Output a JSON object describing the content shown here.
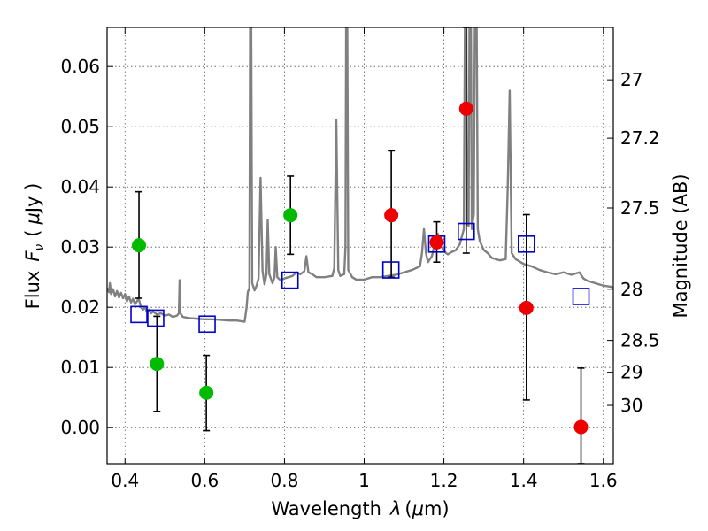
{
  "chart_data": {
    "type": "scatter",
    "title": "",
    "xlabel_text": "Wavelength",
    "xlabel_symbol": "λ",
    "xlabel_unit_open": "(",
    "xlabel_unit_mu": "μ",
    "xlabel_unit_rest": "m)",
    "ylabel_text": "Flux",
    "ylabel_symbol": "F",
    "ylabel_subscript": "ν",
    "ylabel_unit_open": "(",
    "ylabel_unit_mu": "μ",
    "ylabel_unit_rest": "Jy )",
    "y2label": "Magnitude (AB)",
    "xlim": [
      0.355,
      1.625
    ],
    "ylim": [
      -0.006,
      0.0665
    ],
    "grid": true,
    "xticks": [
      0.4,
      0.6,
      0.8,
      1.0,
      1.2,
      1.4,
      1.6
    ],
    "xtick_labels": [
      "0.4",
      "0.6",
      "0.8",
      "1",
      "1.2",
      "1.4",
      "1.6"
    ],
    "yticks": [
      0.0,
      0.01,
      0.02,
      0.03,
      0.04,
      0.05,
      0.06
    ],
    "ytick_labels": [
      "0.00",
      "0.01",
      "0.02",
      "0.03",
      "0.04",
      "0.05",
      "0.06"
    ],
    "y2ticks": [
      {
        "label": "27",
        "flux": 0.0578
      },
      {
        "label": "27.2",
        "flux": 0.0481
      },
      {
        "label": "27.5",
        "flux": 0.0365
      },
      {
        "label": "28",
        "flux": 0.023
      },
      {
        "label": "28.5",
        "flux": 0.0145
      },
      {
        "label": "29",
        "flux": 0.0092
      },
      {
        "label": "30",
        "flux": 0.0037
      }
    ],
    "colors": {
      "spectrum": "#808080",
      "detections_green": "#00bb00",
      "detections_red": "#ee0000",
      "model_boxes": "#0000cc",
      "errorbars": "#000000"
    },
    "series": [
      {
        "name": "Model spectrum",
        "kind": "line",
        "points": [
          [
            0.355,
            0.0232
          ],
          [
            0.36,
            0.0225
          ],
          [
            0.362,
            0.024
          ],
          [
            0.365,
            0.0222
          ],
          [
            0.37,
            0.023
          ],
          [
            0.375,
            0.0218
          ],
          [
            0.38,
            0.0227
          ],
          [
            0.385,
            0.0216
          ],
          [
            0.39,
            0.0224
          ],
          [
            0.395,
            0.0215
          ],
          [
            0.4,
            0.0222
          ],
          [
            0.405,
            0.021
          ],
          [
            0.41,
            0.0218
          ],
          [
            0.415,
            0.0208
          ],
          [
            0.42,
            0.0214
          ],
          [
            0.425,
            0.0205
          ],
          [
            0.43,
            0.021
          ],
          [
            0.434,
            0.0215
          ],
          [
            0.436,
            0.021
          ],
          [
            0.44,
            0.02
          ],
          [
            0.445,
            0.0196
          ],
          [
            0.45,
            0.02
          ],
          [
            0.455,
            0.0192
          ],
          [
            0.46,
            0.0196
          ],
          [
            0.465,
            0.019
          ],
          [
            0.47,
            0.0193
          ],
          [
            0.48,
            0.0188
          ],
          [
            0.49,
            0.019
          ],
          [
            0.5,
            0.0186
          ],
          [
            0.51,
            0.0188
          ],
          [
            0.52,
            0.0184
          ],
          [
            0.53,
            0.0186
          ],
          [
            0.535,
            0.019
          ],
          [
            0.537,
            0.0245
          ],
          [
            0.539,
            0.019
          ],
          [
            0.545,
            0.0184
          ],
          [
            0.56,
            0.0182
          ],
          [
            0.58,
            0.0181
          ],
          [
            0.6,
            0.018
          ],
          [
            0.62,
            0.018
          ],
          [
            0.64,
            0.0179
          ],
          [
            0.66,
            0.0178
          ],
          [
            0.68,
            0.0178
          ],
          [
            0.7,
            0.0176
          ],
          [
            0.705,
            0.02
          ],
          [
            0.708,
            0.0225
          ],
          [
            0.712,
            0.0232
          ],
          [
            0.715,
            0.095
          ],
          [
            0.719,
            0.024
          ],
          [
            0.725,
            0.0228
          ],
          [
            0.73,
            0.0236
          ],
          [
            0.735,
            0.0248
          ],
          [
            0.74,
            0.0415
          ],
          [
            0.745,
            0.026
          ],
          [
            0.75,
            0.0238
          ],
          [
            0.755,
            0.0255
          ],
          [
            0.758,
            0.0345
          ],
          [
            0.762,
            0.0255
          ],
          [
            0.77,
            0.024
          ],
          [
            0.775,
            0.025
          ],
          [
            0.778,
            0.03
          ],
          [
            0.782,
            0.025
          ],
          [
            0.79,
            0.0245
          ],
          [
            0.8,
            0.0248
          ],
          [
            0.81,
            0.025
          ],
          [
            0.82,
            0.0252
          ],
          [
            0.83,
            0.0258
          ],
          [
            0.84,
            0.0255
          ],
          [
            0.85,
            0.026
          ],
          [
            0.855,
            0.0285
          ],
          [
            0.86,
            0.0258
          ],
          [
            0.87,
            0.0255
          ],
          [
            0.88,
            0.025
          ],
          [
            0.9,
            0.025
          ],
          [
            0.92,
            0.0252
          ],
          [
            0.925,
            0.0265
          ],
          [
            0.93,
            0.0512
          ],
          [
            0.935,
            0.0262
          ],
          [
            0.94,
            0.0252
          ],
          [
            0.95,
            0.0255
          ],
          [
            0.953,
            0.03
          ],
          [
            0.956,
            0.095
          ],
          [
            0.96,
            0.0262
          ],
          [
            0.97,
            0.025
          ],
          [
            0.98,
            0.0246
          ],
          [
            1.0,
            0.0246
          ],
          [
            1.02,
            0.025
          ],
          [
            1.04,
            0.025
          ],
          [
            1.06,
            0.0252
          ],
          [
            1.08,
            0.0254
          ],
          [
            1.1,
            0.0258
          ],
          [
            1.12,
            0.0262
          ],
          [
            1.14,
            0.0268
          ],
          [
            1.145,
            0.029
          ],
          [
            1.15,
            0.033
          ],
          [
            1.155,
            0.029
          ],
          [
            1.16,
            0.0275
          ],
          [
            1.17,
            0.0285
          ],
          [
            1.175,
            0.03
          ],
          [
            1.18,
            0.0318
          ],
          [
            1.185,
            0.0322
          ],
          [
            1.19,
            0.031
          ],
          [
            1.195,
            0.03
          ],
          [
            1.2,
            0.0295
          ],
          [
            1.205,
            0.029
          ],
          [
            1.21,
            0.0288
          ],
          [
            1.22,
            0.0292
          ],
          [
            1.23,
            0.0295
          ],
          [
            1.24,
            0.0305
          ],
          [
            1.25,
            0.033
          ],
          [
            1.255,
            0.095
          ],
          [
            1.258,
            0.034
          ],
          [
            1.262,
            0.0335
          ],
          [
            1.266,
            0.095
          ],
          [
            1.27,
            0.033
          ],
          [
            1.275,
            0.0355
          ],
          [
            1.28,
            0.095
          ],
          [
            1.285,
            0.033
          ],
          [
            1.29,
            0.031
          ],
          [
            1.3,
            0.0295
          ],
          [
            1.31,
            0.029
          ],
          [
            1.32,
            0.0282
          ],
          [
            1.34,
            0.0278
          ],
          [
            1.355,
            0.028
          ],
          [
            1.36,
            0.0395
          ],
          [
            1.365,
            0.056
          ],
          [
            1.37,
            0.029
          ],
          [
            1.38,
            0.028
          ],
          [
            1.4,
            0.0272
          ],
          [
            1.42,
            0.0268
          ],
          [
            1.44,
            0.0262
          ],
          [
            1.46,
            0.0258
          ],
          [
            1.48,
            0.0255
          ],
          [
            1.5,
            0.0258
          ],
          [
            1.52,
            0.0254
          ],
          [
            1.54,
            0.0258
          ],
          [
            1.55,
            0.0248
          ],
          [
            1.56,
            0.0244
          ],
          [
            1.58,
            0.024
          ],
          [
            1.6,
            0.0236
          ],
          [
            1.62,
            0.0234
          ],
          [
            1.625,
            0.0232
          ]
        ]
      },
      {
        "name": "Detections (green)",
        "kind": "circle",
        "color": "#00bb00",
        "points": [
          {
            "x": 0.435,
            "y": 0.0303,
            "ylow": 0.0215,
            "yhigh": 0.0392
          },
          {
            "x": 0.48,
            "y": 0.0106,
            "ylow": 0.0027,
            "yhigh": 0.0185
          },
          {
            "x": 0.604,
            "y": 0.0058,
            "ylow": -0.0005,
            "yhigh": 0.012
          },
          {
            "x": 0.815,
            "y": 0.0353,
            "ylow": 0.0288,
            "yhigh": 0.0418
          }
        ]
      },
      {
        "name": "Detections (red)",
        "kind": "circle",
        "color": "#ee0000",
        "points": [
          {
            "x": 1.068,
            "y": 0.0353,
            "ylow": 0.025,
            "yhigh": 0.046
          },
          {
            "x": 1.182,
            "y": 0.0308,
            "ylow": 0.0275,
            "yhigh": 0.0342
          },
          {
            "x": 1.256,
            "y": 0.053,
            "ylow": 0.029,
            "yhigh": 0.0665
          },
          {
            "x": 1.407,
            "y": 0.0199,
            "ylow": 0.0046,
            "yhigh": 0.0354
          },
          {
            "x": 1.544,
            "y": 0.0001,
            "ylow": -0.006,
            "yhigh": 0.0099
          }
        ]
      },
      {
        "name": "Model photometry",
        "kind": "square",
        "color": "#0000cc",
        "points": [
          {
            "x": 0.435,
            "y": 0.0188
          },
          {
            "x": 0.477,
            "y": 0.0182
          },
          {
            "x": 0.606,
            "y": 0.0172
          },
          {
            "x": 0.814,
            "y": 0.0245
          },
          {
            "x": 1.067,
            "y": 0.0262
          },
          {
            "x": 1.182,
            "y": 0.0305
          },
          {
            "x": 1.256,
            "y": 0.0326
          },
          {
            "x": 1.407,
            "y": 0.0305
          },
          {
            "x": 1.544,
            "y": 0.0218
          }
        ]
      }
    ]
  }
}
